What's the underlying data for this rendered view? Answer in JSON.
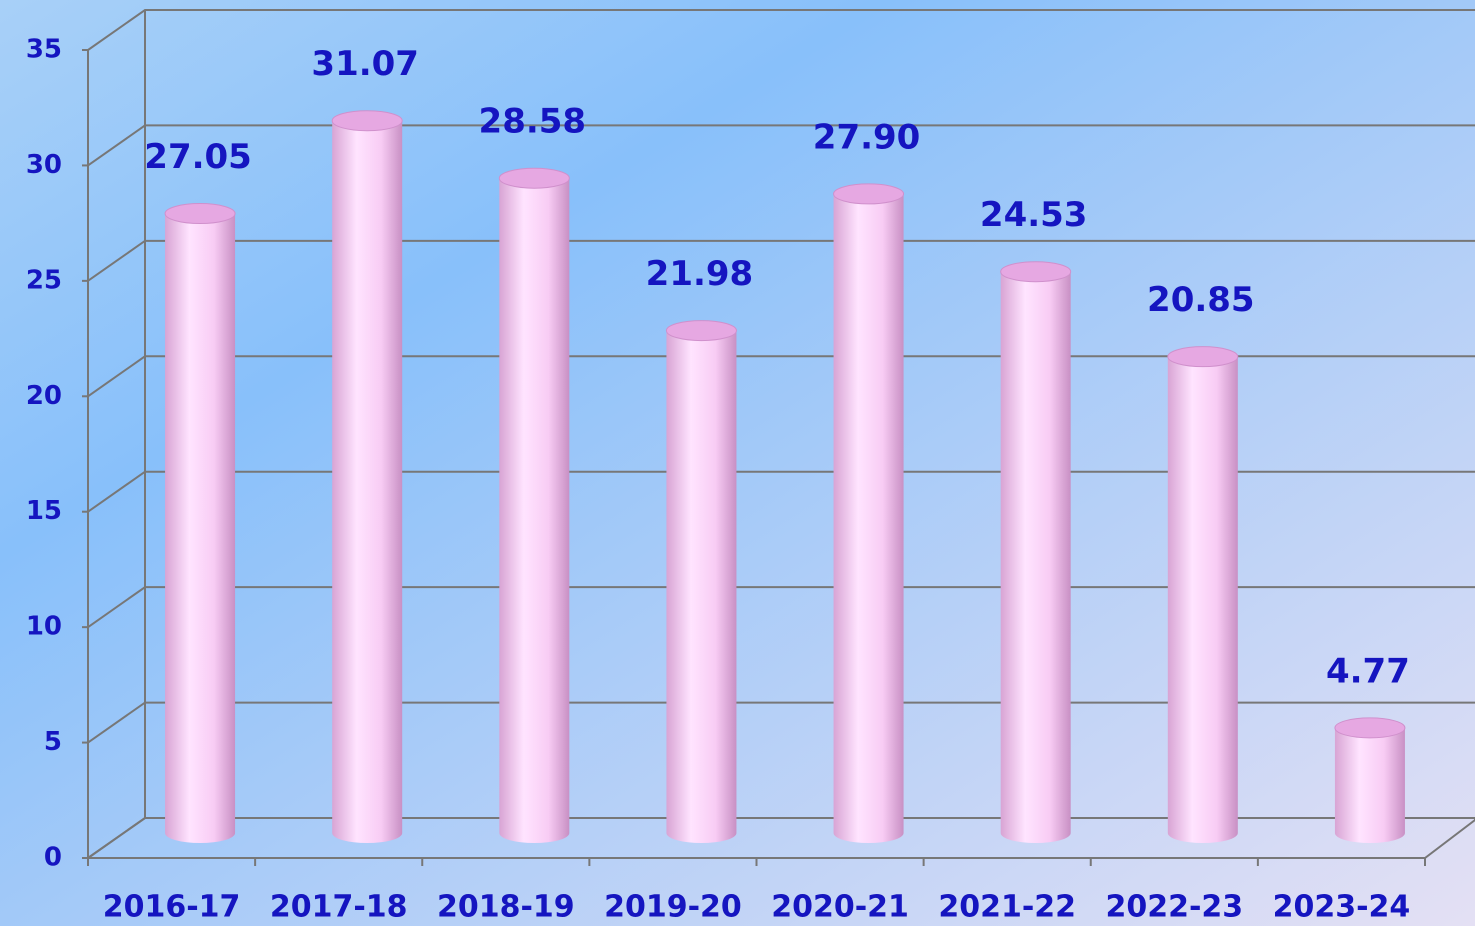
{
  "chart_data": {
    "type": "bar3d",
    "categories": [
      "2016-17",
      "2017-18",
      "2018-19",
      "2019-20",
      "2020-21",
      "2021-22",
      "2022-23",
      "2023-24"
    ],
    "values": [
      27.05,
      31.07,
      28.58,
      21.98,
      27.9,
      24.53,
      20.85,
      4.77
    ],
    "value_labels": [
      "27.05",
      "31.07",
      "28.58",
      "21.98",
      "27.90",
      "24.53",
      "20.85",
      "4.77"
    ],
    "color": "#f8c8f4",
    "ylim": [
      0,
      35
    ],
    "yticks": [
      0,
      5,
      10,
      15,
      20,
      25,
      30,
      35
    ],
    "grid": true
  }
}
